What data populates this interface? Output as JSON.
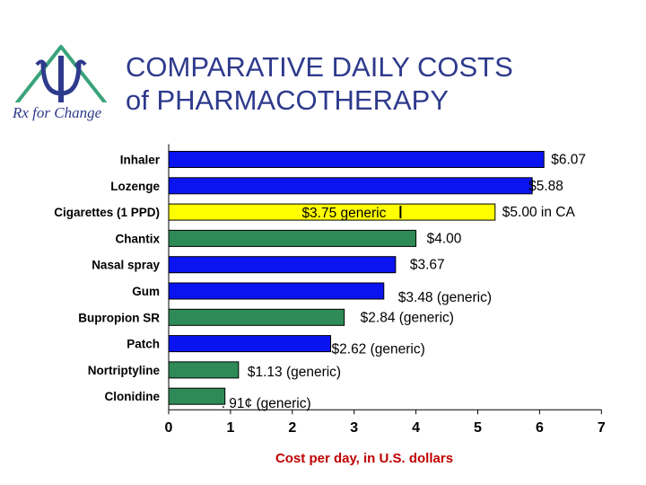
{
  "slide": {
    "title_line1": "COMPARATIVE DAILY COSTS",
    "title_line2": "of PHARMACOTHERAPY",
    "logo_text": "Rx for Change"
  },
  "colors": {
    "blue": "#0a14f0",
    "green": "#2e8b57",
    "yellow": "#ffff00",
    "title": "#2e3a8c",
    "axis_label": "#c00000",
    "logo_green": "#3aa37a"
  },
  "chart_data": {
    "type": "bar",
    "orientation": "horizontal",
    "xlabel": "Cost per day, in U.S. dollars",
    "ylabel": "",
    "xlim": [
      0,
      7
    ],
    "xticks": [
      "0",
      "1",
      "2",
      "3",
      "4",
      "5",
      "6",
      "7"
    ],
    "grid": false,
    "categories": [
      "Inhaler",
      "Lozenge",
      "Cigarettes (1 PPD)",
      "Chantix",
      "Nasal spray",
      "Gum",
      "Bupropion SR",
      "Patch",
      "Nortriptyline",
      "Clonidine"
    ],
    "values": [
      6.07,
      5.88,
      5.28,
      4.0,
      3.67,
      3.48,
      2.84,
      2.62,
      1.13,
      0.91
    ],
    "bar_colors": [
      "blue",
      "blue",
      "yellow",
      "green",
      "blue",
      "blue",
      "green",
      "blue",
      "green",
      "green"
    ],
    "value_labels": [
      "$6.07",
      "$5.88",
      "$5.00 in CA",
      "$4.00",
      "$3.67",
      "$3.48 (generic)",
      "$2.84 (generic)",
      "$2.62 (generic)",
      "$1.13 (generic)",
      ". 91¢ (generic)"
    ],
    "annotations": [
      {
        "category": "Cigarettes (1 PPD)",
        "text": "$3.75 generic",
        "marker_value": 3.75
      }
    ]
  }
}
